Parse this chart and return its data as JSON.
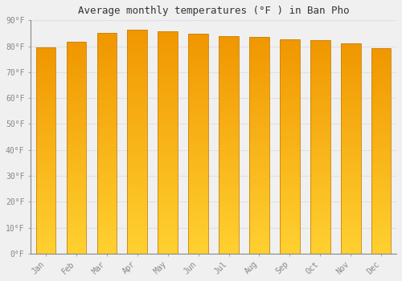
{
  "title": "Average monthly temperatures (°F ) in Ban Pho",
  "months": [
    "Jan",
    "Feb",
    "Mar",
    "Apr",
    "May",
    "Jun",
    "Jul",
    "Aug",
    "Sep",
    "Oct",
    "Nov",
    "Dec"
  ],
  "values": [
    79.5,
    81.7,
    85.0,
    86.5,
    85.8,
    84.7,
    83.8,
    83.5,
    82.8,
    82.4,
    81.0,
    79.2
  ],
  "bar_color_top": "#F5A000",
  "bar_color_bottom": "#FFD040",
  "bar_edge_color": "#C8820A",
  "background_color": "#f0f0f0",
  "grid_color": "#e0e0e0",
  "ylim": [
    0,
    90
  ],
  "yticks": [
    0,
    10,
    20,
    30,
    40,
    50,
    60,
    70,
    80,
    90
  ],
  "ytick_labels": [
    "0°F",
    "10°F",
    "20°F",
    "30°F",
    "40°F",
    "50°F",
    "60°F",
    "70°F",
    "80°F",
    "90°F"
  ],
  "title_fontsize": 9,
  "tick_fontsize": 7,
  "tick_font_color": "#888888",
  "figsize": [
    5.0,
    3.5
  ],
  "dpi": 100
}
